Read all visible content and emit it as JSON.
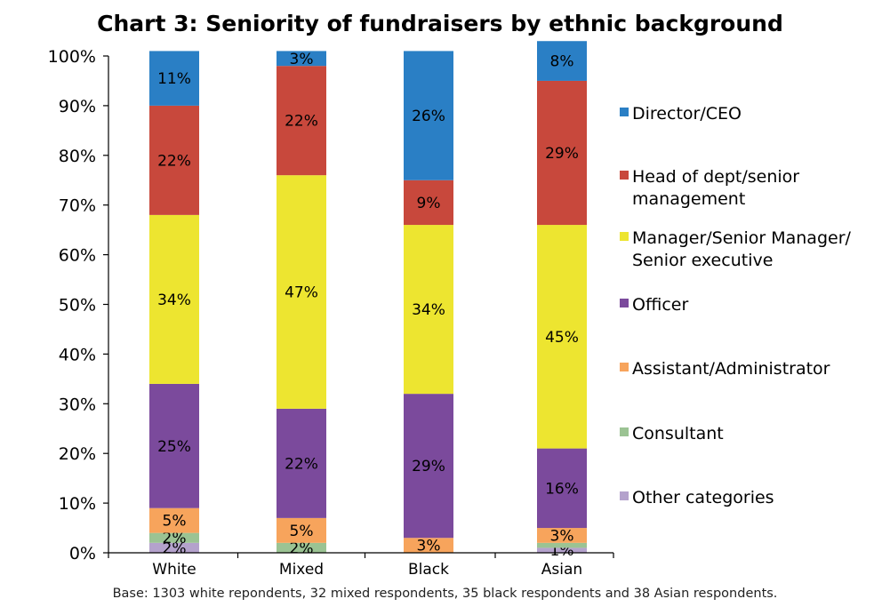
{
  "chart_data": {
    "type": "bar",
    "stacked": true,
    "title": "Chart 3: Seniority of fundraisers by ethnic background",
    "categories": [
      "White",
      "Mixed",
      "Black",
      "Asian"
    ],
    "series": [
      {
        "name": "Other categories",
        "color": "#b4a2cc",
        "values": [
          2,
          0,
          0,
          1
        ],
        "labels": [
          "2%",
          "",
          "",
          "1%"
        ]
      },
      {
        "name": "Consultant",
        "color": "#9bc393",
        "values": [
          2,
          2,
          0,
          1
        ],
        "labels": [
          "2%",
          "2%",
          "",
          ""
        ]
      },
      {
        "name": "Assistant/Administrator",
        "color": "#f7a45c",
        "values": [
          5,
          5,
          3,
          3
        ],
        "labels": [
          "5%",
          "5%",
          "3%",
          "3%"
        ]
      },
      {
        "name": "Officer",
        "color": "#7b4a9c",
        "values": [
          25,
          22,
          29,
          16
        ],
        "labels": [
          "25%",
          "22%",
          "29%",
          "16%"
        ]
      },
      {
        "name": "Manager/Senior Manager/ Senior executive",
        "color": "#ede530",
        "values": [
          34,
          47,
          34,
          45
        ],
        "labels": [
          "34%",
          "47%",
          "34%",
          "45%"
        ]
      },
      {
        "name": "Head of dept/senior management",
        "color": "#c8483c",
        "values": [
          22,
          22,
          9,
          29
        ],
        "labels": [
          "22%",
          "22%",
          "9%",
          "29%"
        ]
      },
      {
        "name": "Director/CEO",
        "color": "#2a7fc5",
        "values": [
          11,
          3,
          26,
          8
        ],
        "labels": [
          "11%",
          "3%",
          "26%",
          "8%"
        ]
      }
    ],
    "legend": {
      "position": "right",
      "entries": [
        {
          "lines": [
            "Director/CEO"
          ],
          "color": "#2a7fc5"
        },
        {
          "lines": [
            "Head of dept/senior",
            "management"
          ],
          "color": "#c8483c"
        },
        {
          "lines": [
            "Manager/Senior Manager/",
            "Senior executive"
          ],
          "color": "#ede530"
        },
        {
          "lines": [
            "Officer"
          ],
          "color": "#7b4a9c"
        },
        {
          "lines": [
            "Assistant/Administrator"
          ],
          "color": "#f7a45c"
        },
        {
          "lines": [
            "Consultant"
          ],
          "color": "#9bc393"
        },
        {
          "lines": [
            "Other categories"
          ],
          "color": "#b4a2cc"
        }
      ]
    },
    "y_ticks": [
      "0%",
      "10%",
      "20%",
      "30%",
      "40%",
      "50%",
      "60%",
      "70%",
      "80%",
      "90%",
      "100%"
    ],
    "ylim": [
      0,
      100
    ],
    "grid": false,
    "footnote": "Base: 1303 white repondents, 32 mixed respondents, 35 black respondents and 38 Asian respondents."
  }
}
